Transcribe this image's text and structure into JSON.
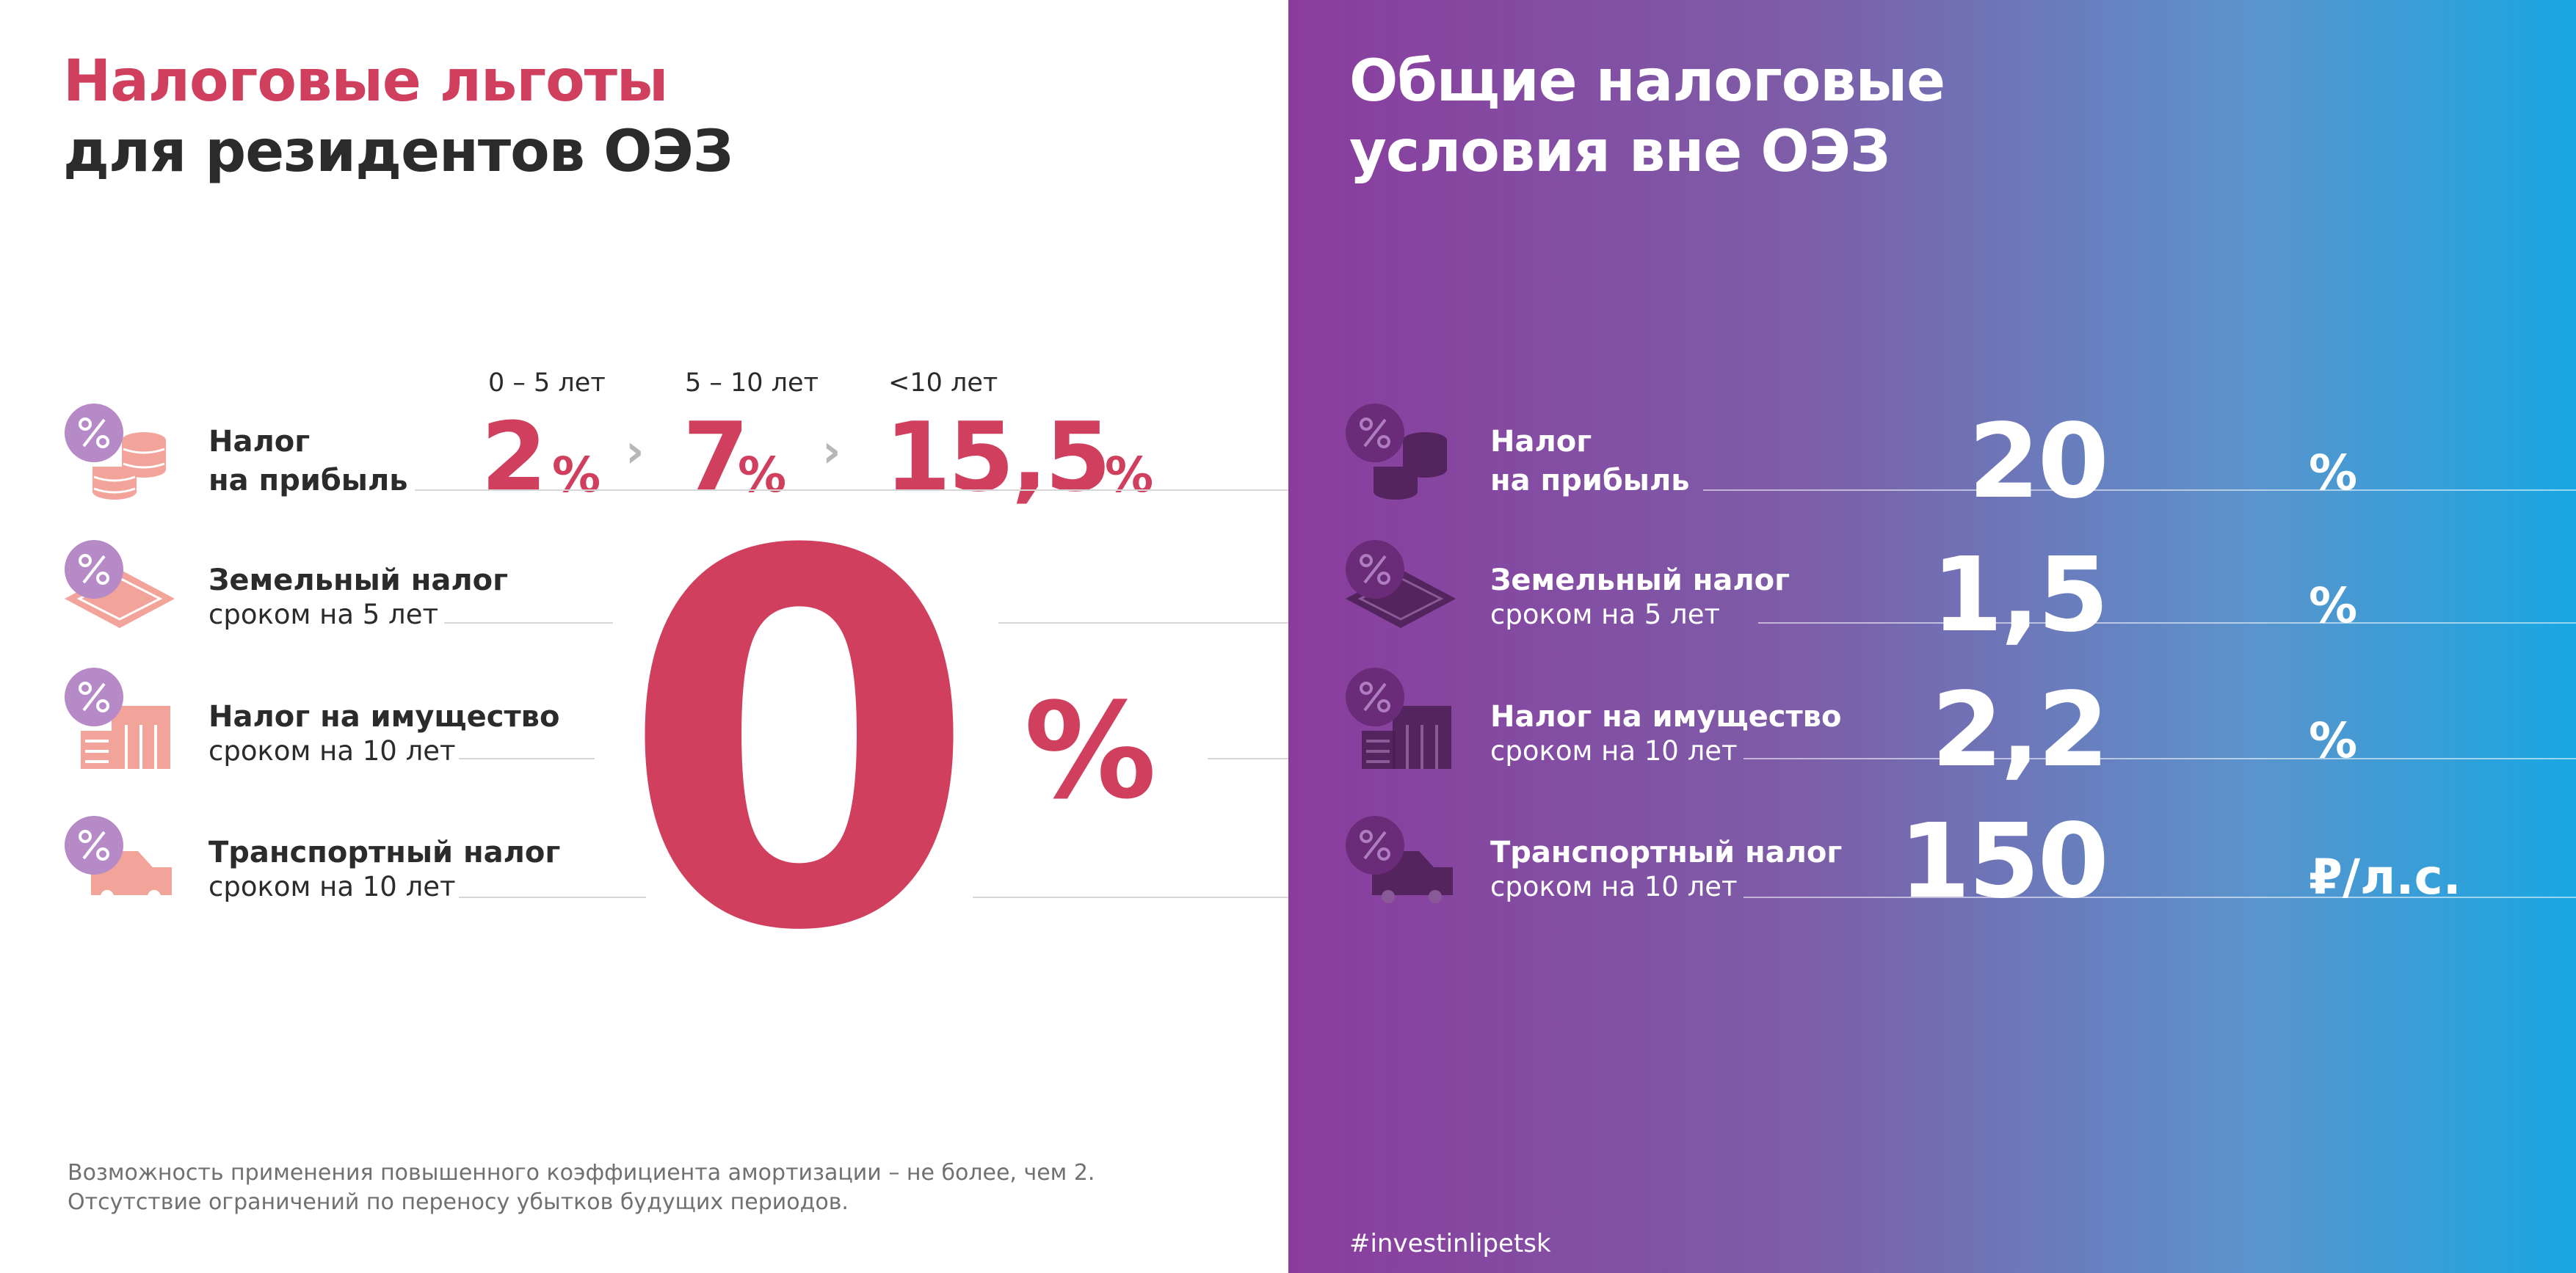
{
  "left": {
    "title_line1": "Налоговые льготы",
    "title_line2": "для резидентов ОЭЗ",
    "periods": [
      "0 – 5 лет",
      "5 – 10 лет",
      "<10 лет"
    ],
    "profit_rates": [
      {
        "value": "2",
        "unit": "%"
      },
      {
        "value": "7",
        "unit": "%"
      },
      {
        "value": "15,5",
        "unit": "%"
      }
    ],
    "rows": [
      {
        "main": "Налог",
        "main2": "на прибыль",
        "icon": "coins-percent-icon"
      },
      {
        "main": "Земельный налог",
        "sub": "сроком на 5 лет",
        "icon": "land-percent-icon"
      },
      {
        "main": "Налог на имущество",
        "sub": "сроком на 10 лет",
        "icon": "building-percent-icon"
      },
      {
        "main": "Транспортный налог",
        "sub": "сроком на 10 лет",
        "icon": "truck-percent-icon"
      }
    ],
    "big_value": "0",
    "big_unit": "%",
    "footnote_line1": "Возможность применения повышенного коэффициента амортизации – не более, чем 2.",
    "footnote_line2": "Отсутствие ограничений по переносу убытков будущих периодов."
  },
  "right": {
    "title_line1": "Общие налоговые",
    "title_line2": "условия вне ОЭЗ",
    "rows": [
      {
        "main": "Налог",
        "main2": "на прибыль",
        "value": "20",
        "unit": "%",
        "icon": "coins-percent-icon"
      },
      {
        "main": "Земельный налог",
        "sub": "сроком на 5 лет",
        "value": "1,5",
        "unit": "%",
        "icon": "land-percent-icon"
      },
      {
        "main": "Налог на имущество",
        "sub": "сроком на 10 лет",
        "value": "2,2",
        "unit": "%",
        "icon": "building-percent-icon"
      },
      {
        "main": "Транспортный налог",
        "sub": "сроком на 10 лет",
        "value": "150",
        "unit": "₽/л.с.",
        "icon": "truck-percent-icon"
      }
    ],
    "hashtag": "#investinlipetsk"
  },
  "colors": {
    "accent_red": "#d0405e",
    "icon_pink": "#f2a39a",
    "icon_badge_purple": "#b58ac7",
    "gradient_start": "#8a3c9d",
    "gradient_end": "#18a7e2",
    "dark_icon": "#4a1f52"
  }
}
